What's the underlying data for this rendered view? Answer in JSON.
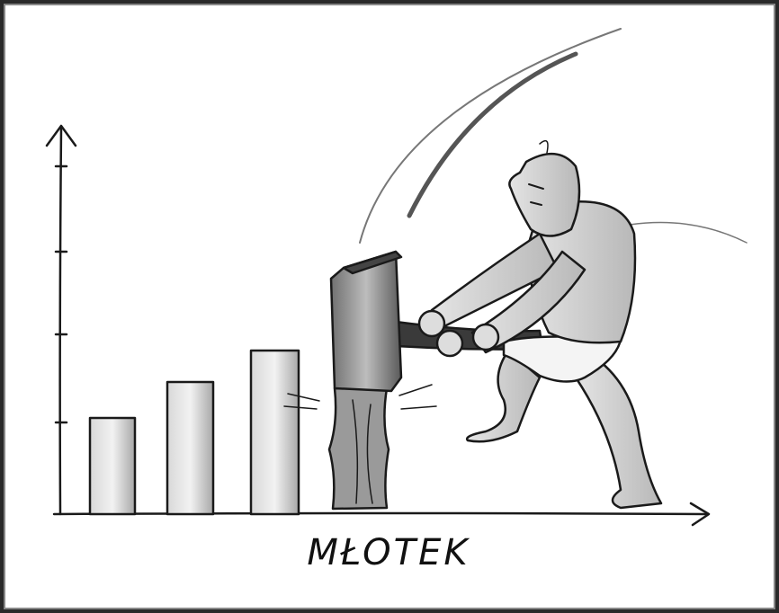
{
  "caption": "MŁOTEK"
}
